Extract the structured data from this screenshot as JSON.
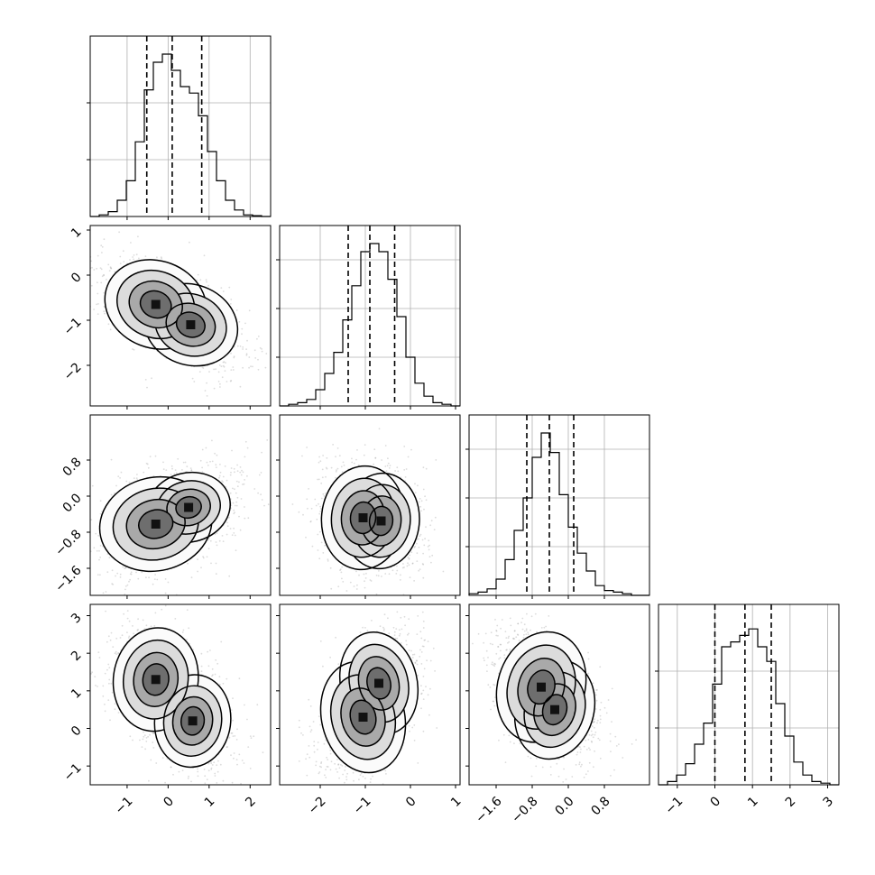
{
  "chart_data": {
    "type": "corner",
    "description_colors": {
      "line": "#000000",
      "grid": "#b0b0b0",
      "scatter": "#9a9a9a",
      "density_dark": "#111111",
      "density_light": "#f6f6f6"
    },
    "parameters": [
      {
        "range": [
          -1.9,
          2.5
        ],
        "ticks": [
          -1,
          0,
          1,
          2
        ],
        "tick_labels": [
          "−1",
          "0",
          "1",
          "2"
        ],
        "quantiles": [
          -0.52,
          0.1,
          0.82
        ],
        "hist": {
          "edges": [
            -1.9,
            -1.68,
            -1.46,
            -1.24,
            -1.02,
            -0.8,
            -0.58,
            -0.36,
            -0.14,
            0.08,
            0.3,
            0.52,
            0.74,
            0.96,
            1.18,
            1.4,
            1.62,
            1.84,
            2.06,
            2.28,
            2.5
          ],
          "heights": [
            0.0,
            0.01,
            0.03,
            0.1,
            0.22,
            0.46,
            0.78,
            0.95,
            1.0,
            0.9,
            0.8,
            0.76,
            0.62,
            0.4,
            0.22,
            0.1,
            0.04,
            0.01,
            0.005,
            0.0
          ]
        },
        "hist_grid": [
          0.35,
          0.7
        ]
      },
      {
        "range": [
          -2.9,
          1.1
        ],
        "ticks": [
          -2,
          -1,
          0,
          1
        ],
        "tick_labels": [
          "−2",
          "−1",
          "0",
          "1"
        ],
        "quantiles": [
          -1.38,
          -0.9,
          -0.35
        ],
        "hist": {
          "edges": [
            -2.9,
            -2.7,
            -2.5,
            -2.3,
            -2.1,
            -1.9,
            -1.7,
            -1.5,
            -1.3,
            -1.1,
            -0.9,
            -0.7,
            -0.5,
            -0.3,
            -0.1,
            0.1,
            0.3,
            0.5,
            0.7,
            0.9,
            1.1
          ],
          "heights": [
            0.0,
            0.01,
            0.02,
            0.04,
            0.1,
            0.2,
            0.33,
            0.53,
            0.74,
            0.95,
            1.0,
            0.95,
            0.78,
            0.55,
            0.3,
            0.14,
            0.06,
            0.02,
            0.01,
            0.0
          ]
        },
        "hist_grid": [
          0.3,
          0.6,
          0.9
        ]
      },
      {
        "range": [
          -2.2,
          1.8
        ],
        "ticks": [
          -1.6,
          -0.8,
          0.0,
          0.8
        ],
        "tick_labels": [
          "−1.6",
          "−0.8",
          "0.0",
          "0.8"
        ],
        "quantiles": [
          -0.92,
          -0.42,
          0.12
        ],
        "hist": {
          "edges": [
            -2.2,
            -2.0,
            -1.8,
            -1.6,
            -1.4,
            -1.2,
            -1.0,
            -0.8,
            -0.6,
            -0.4,
            -0.2,
            0.0,
            0.2,
            0.4,
            0.6,
            0.8,
            1.0,
            1.2,
            1.4,
            1.6,
            1.8
          ],
          "heights": [
            0.01,
            0.02,
            0.04,
            0.1,
            0.22,
            0.4,
            0.6,
            0.85,
            1.0,
            0.88,
            0.62,
            0.42,
            0.26,
            0.15,
            0.06,
            0.03,
            0.02,
            0.01,
            0.0,
            0.0
          ]
        },
        "hist_grid": [
          0.3,
          0.6,
          0.9
        ]
      },
      {
        "range": [
          -1.5,
          3.3
        ],
        "ticks": [
          -1,
          0,
          1,
          2,
          3
        ],
        "tick_labels": [
          "−1",
          "0",
          "1",
          "2",
          "3"
        ],
        "quantiles": [
          0.0,
          0.8,
          1.5
        ],
        "hist": {
          "edges": [
            -1.5,
            -1.26,
            -1.02,
            -0.78,
            -0.54,
            -0.3,
            -0.06,
            0.18,
            0.42,
            0.66,
            0.9,
            1.14,
            1.38,
            1.62,
            1.86,
            2.1,
            2.34,
            2.58,
            2.82,
            3.06,
            3.3
          ],
          "heights": [
            0.0,
            0.02,
            0.06,
            0.13,
            0.25,
            0.38,
            0.62,
            0.85,
            0.88,
            0.92,
            0.96,
            0.85,
            0.76,
            0.5,
            0.3,
            0.14,
            0.06,
            0.02,
            0.01,
            0.0
          ]
        },
        "hist_grid": [
          0.35,
          0.7
        ]
      }
    ],
    "pairs": [
      {
        "row": 1,
        "col": 0,
        "modes": [
          {
            "x": -0.3,
            "y": -0.65,
            "w": 1.0
          },
          {
            "x": 0.55,
            "y": -1.1,
            "w": 0.85
          }
        ],
        "sx": 0.55,
        "sy": 0.42,
        "rho": -0.55
      },
      {
        "row": 2,
        "col": 0,
        "modes": [
          {
            "x": -0.3,
            "y": -0.62,
            "w": 1.0
          },
          {
            "x": 0.5,
            "y": -0.25,
            "w": 0.55
          }
        ],
        "sx": 0.6,
        "sy": 0.45,
        "rho": 0.35
      },
      {
        "row": 2,
        "col": 1,
        "modes": [
          {
            "x": -1.05,
            "y": -0.48,
            "w": 1.0
          },
          {
            "x": -0.65,
            "y": -0.55,
            "w": 0.85
          }
        ],
        "sx": 0.4,
        "sy": 0.5,
        "rho": -0.15
      },
      {
        "row": 3,
        "col": 0,
        "modes": [
          {
            "x": -0.3,
            "y": 1.3,
            "w": 1.0
          },
          {
            "x": 0.6,
            "y": 0.2,
            "w": 0.8
          }
        ],
        "sx": 0.45,
        "sy": 0.6,
        "rho": -0.2
      },
      {
        "row": 3,
        "col": 1,
        "modes": [
          {
            "x": -1.05,
            "y": 0.3,
            "w": 1.0
          },
          {
            "x": -0.7,
            "y": 1.2,
            "w": 0.85
          }
        ],
        "sx": 0.4,
        "sy": 0.65,
        "rho": 0.35
      },
      {
        "row": 3,
        "col": 2,
        "modes": [
          {
            "x": -0.6,
            "y": 1.1,
            "w": 1.0
          },
          {
            "x": -0.3,
            "y": 0.5,
            "w": 0.8
          }
        ],
        "sx": 0.42,
        "sy": 0.65,
        "rho": -0.45
      }
    ]
  }
}
